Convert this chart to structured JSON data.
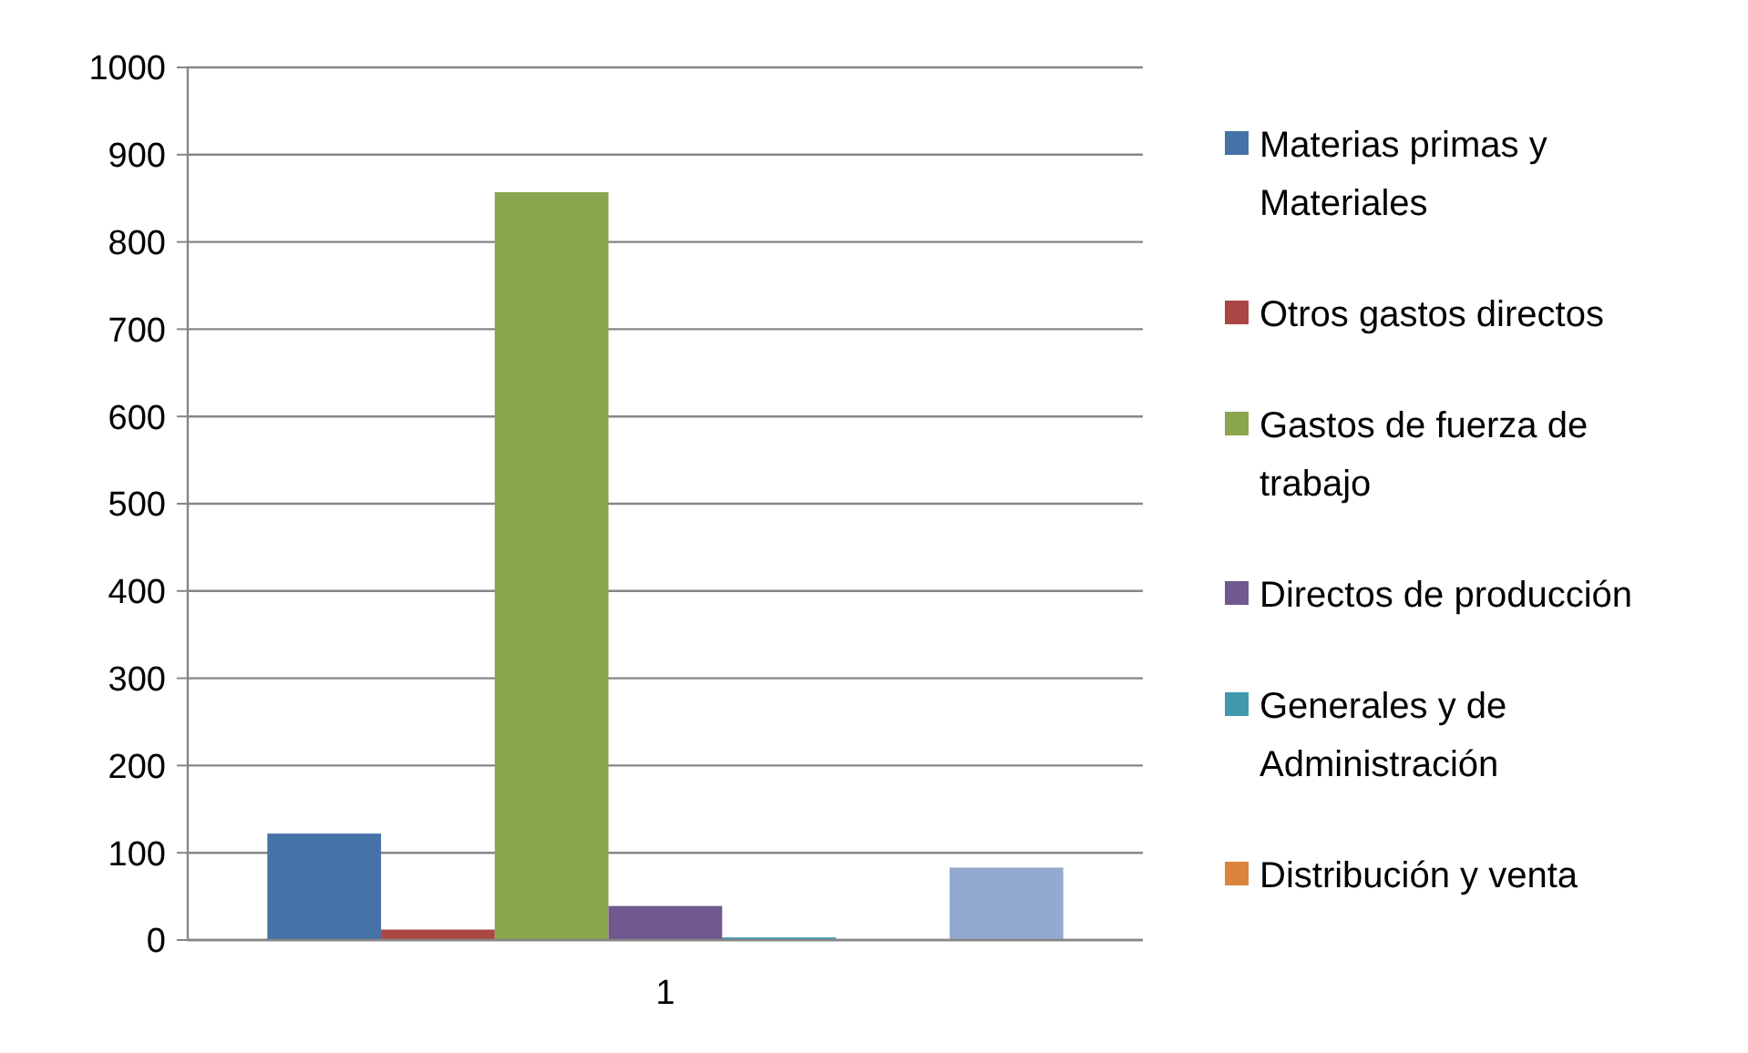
{
  "chart_data": {
    "type": "bar",
    "categories": [
      "1"
    ],
    "series": [
      {
        "name": "Materias primas y Materiales",
        "color": "#4572a7",
        "values": [
          122
        ]
      },
      {
        "name": "Otros gastos directos",
        "color": "#aa4643",
        "values": [
          12
        ]
      },
      {
        "name": "Gastos de fuerza de trabajo",
        "color": "#89a54e",
        "values": [
          857
        ]
      },
      {
        "name": "Directos de producción",
        "color": "#71588f",
        "values": [
          39
        ]
      },
      {
        "name": "Generales y de Administración",
        "color": "#4198af",
        "values": [
          3
        ]
      },
      {
        "name": "Distribución y venta",
        "color": "#db843d",
        "values": [
          1
        ]
      },
      {
        "color": "#93a9cf",
        "values": [
          83
        ]
      }
    ],
    "ylim": [
      0,
      1000
    ],
    "yticks": [
      0,
      100,
      200,
      300,
      400,
      500,
      600,
      700,
      800,
      900,
      1000
    ],
    "grid": "y",
    "legend": "right"
  }
}
